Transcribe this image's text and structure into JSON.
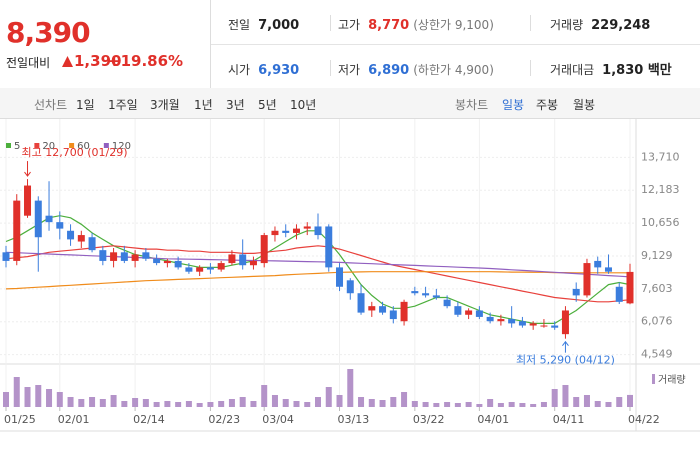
{
  "header": {
    "price": "8,390",
    "change_label": "전일대비",
    "change": "1,390",
    "change_rate": "+19.86%",
    "stats": [
      {
        "label": "전일",
        "value": "7,000"
      },
      {
        "label": "고가",
        "value": "8,770",
        "note": "(상한가 9,100)"
      },
      {
        "label": "거래량",
        "value": "229,248"
      },
      {
        "label": "시가",
        "value": "6,930"
      },
      {
        "label": "저가",
        "value": "6,890",
        "note": "(하한가 4,900)"
      },
      {
        "label": "거래대금",
        "value": "1,830 백만"
      }
    ]
  },
  "toolbar": {
    "line_chart_label": "선차트",
    "periods": [
      "1일",
      "1주일",
      "3개월",
      "1년",
      "3년",
      "5년",
      "10년"
    ],
    "candle_label": "봉차트",
    "candle_periods": [
      "일봉",
      "주봉",
      "월봉"
    ],
    "active_candle_period": 0
  },
  "chart_data": {
    "type": "candlestick",
    "up_color": "#e0302a",
    "down_color": "#3b7ddd",
    "volume_color": "#b493c9",
    "volume_label": "거래량",
    "annotations": {
      "high": "최고 12,700 (01/29)",
      "low": "최저 5,290 (04/12)"
    },
    "categories": [
      "01/25",
      null,
      null,
      null,
      null,
      "02/01",
      null,
      null,
      null,
      null,
      null,
      null,
      "02/14",
      null,
      null,
      null,
      null,
      null,
      null,
      "02/23",
      null,
      null,
      null,
      null,
      "03/04",
      null,
      null,
      null,
      null,
      null,
      null,
      "03/13",
      null,
      null,
      null,
      null,
      null,
      null,
      "03/22",
      null,
      null,
      null,
      null,
      null,
      "04/01",
      null,
      null,
      null,
      null,
      null,
      null,
      "04/11",
      null,
      null,
      null,
      null,
      null,
      null,
      "04/22"
    ],
    "open": [
      9300,
      8900,
      11000,
      11700,
      11000,
      10700,
      10300,
      9800,
      10000,
      9400,
      8900,
      9300,
      8900,
      9300,
      9000,
      8800,
      8900,
      8600,
      8400,
      8600,
      8500,
      8800,
      9200,
      8700,
      8800,
      10100,
      10300,
      10200,
      10400,
      10500,
      10500,
      8600,
      8000,
      7400,
      6600,
      6800,
      6600,
      6100,
      7500,
      7400,
      7300,
      7100,
      6800,
      6400,
      6600,
      6300,
      6100,
      6200,
      6100,
      5900,
      5900,
      5900,
      5500,
      7600,
      7300,
      8900,
      8600,
      7700,
      6930
    ],
    "high": [
      9600,
      12000,
      12700,
      11900,
      12600,
      11200,
      10600,
      10300,
      10200,
      9600,
      9500,
      9600,
      9400,
      9500,
      9200,
      9000,
      9100,
      8800,
      8700,
      8800,
      8900,
      9400,
      9900,
      9100,
      10200,
      10500,
      10600,
      10600,
      10700,
      11100,
      10600,
      8800,
      8100,
      7800,
      7000,
      7000,
      6800,
      7100,
      7700,
      7700,
      7600,
      7300,
      7000,
      6700,
      6800,
      6500,
      6400,
      6800,
      6300,
      6100,
      6200,
      6100,
      6800,
      7900,
      9000,
      9100,
      9200,
      7900,
      8770
    ],
    "low": [
      8600,
      8700,
      10900,
      8400,
      10300,
      9900,
      9600,
      9500,
      9300,
      8700,
      8600,
      8800,
      8600,
      8900,
      8700,
      8600,
      8500,
      8300,
      8200,
      8300,
      8400,
      8700,
      8500,
      8500,
      8600,
      9800,
      10000,
      9900,
      10100,
      9900,
      8400,
      7500,
      7100,
      6400,
      6300,
      6400,
      6000,
      5900,
      7300,
      7200,
      7100,
      6700,
      6300,
      6200,
      6200,
      6000,
      5900,
      5800,
      5800,
      5700,
      5800,
      5700,
      5290,
      7000,
      7200,
      8300,
      8300,
      6900,
      6890
    ],
    "close": [
      8900,
      11700,
      12400,
      10000,
      10700,
      10400,
      9900,
      10100,
      9400,
      8900,
      9300,
      8900,
      9200,
      9000,
      8800,
      8900,
      8600,
      8400,
      8600,
      8500,
      8800,
      9200,
      8700,
      8900,
      10100,
      10300,
      10200,
      10400,
      10500,
      10100,
      8600,
      7700,
      7400,
      6500,
      6800,
      6500,
      6200,
      7000,
      7400,
      7300,
      7200,
      6800,
      6400,
      6600,
      6300,
      6100,
      6200,
      6000,
      5900,
      6000,
      5900,
      5800,
      6600,
      7300,
      8800,
      8600,
      8400,
      7000,
      8390
    ],
    "volume": [
      285000,
      570000,
      380000,
      418000,
      342000,
      285000,
      190000,
      152000,
      190000,
      152000,
      228000,
      114000,
      171000,
      152000,
      95000,
      114000,
      95000,
      114000,
      76000,
      95000,
      114000,
      152000,
      190000,
      114000,
      418000,
      228000,
      152000,
      114000,
      95000,
      190000,
      380000,
      228000,
      722000,
      190000,
      152000,
      133000,
      190000,
      285000,
      114000,
      95000,
      76000,
      95000,
      76000,
      95000,
      57000,
      152000,
      76000,
      95000,
      76000,
      57000,
      95000,
      342000,
      418000,
      190000,
      228000,
      114000,
      95000,
      190000,
      229248
    ],
    "series": [
      {
        "name": "5",
        "color": "#4caf3c",
        "values": [
          9800,
          10000,
          10300,
          10600,
          10900,
          11000,
          10900,
          10600,
          10200,
          9900,
          9600,
          9400,
          9200,
          9100,
          9000,
          8900,
          8800,
          8700,
          8600,
          8600,
          8600,
          8700,
          8800,
          8900,
          9200,
          9500,
          9800,
          10100,
          10300,
          10300,
          9800,
          9200,
          8500,
          7800,
          7300,
          6900,
          6700,
          6700,
          6800,
          7000,
          7200,
          7200,
          7000,
          6800,
          6600,
          6400,
          6300,
          6200,
          6100,
          6000,
          6000,
          6000,
          6300,
          6600,
          7000,
          7400,
          7800,
          7900,
          7800
        ]
      },
      {
        "name": "20",
        "color": "#e8413c",
        "values": [
          9000,
          9050,
          9100,
          9200,
          9300,
          9350,
          9400,
          9450,
          9500,
          9550,
          9600,
          9550,
          9500,
          9450,
          9450,
          9400,
          9400,
          9350,
          9350,
          9300,
          9300,
          9300,
          9250,
          9250,
          9300,
          9350,
          9400,
          9500,
          9550,
          9600,
          9550,
          9450,
          9300,
          9150,
          9000,
          8850,
          8700,
          8600,
          8500,
          8400,
          8300,
          8200,
          8100,
          8000,
          7900,
          7800,
          7700,
          7600,
          7500,
          7400,
          7300,
          7200,
          7150,
          7100,
          7050,
          7000,
          7000,
          7050,
          7100
        ]
      },
      {
        "name": "60",
        "color": "#f08c1c",
        "values": [
          7600,
          7620,
          7650,
          7680,
          7710,
          7740,
          7770,
          7800,
          7830,
          7860,
          7890,
          7920,
          7950,
          7980,
          8000,
          8020,
          8040,
          8060,
          8080,
          8100,
          8120,
          8140,
          8160,
          8180,
          8200,
          8220,
          8250,
          8280,
          8300,
          8320,
          8350,
          8370,
          8380,
          8390,
          8400,
          8400,
          8400,
          8400,
          8400,
          8400,
          8400,
          8400,
          8400,
          8400,
          8400,
          8400,
          8390,
          8380,
          8380,
          8370,
          8370,
          8360,
          8360,
          8350,
          8350,
          8350,
          8350,
          8350,
          8350
        ]
      },
      {
        "name": "120",
        "color": "#9160c0",
        "values": [
          9300,
          9280,
          9260,
          9240,
          9220,
          9200,
          9180,
          9160,
          9140,
          9120,
          9100,
          9080,
          9060,
          9040,
          9020,
          9000,
          8990,
          8980,
          8970,
          8960,
          8950,
          8940,
          8930,
          8920,
          8910,
          8900,
          8890,
          8880,
          8870,
          8860,
          8850,
          8830,
          8810,
          8790,
          8770,
          8750,
          8730,
          8710,
          8690,
          8670,
          8650,
          8630,
          8610,
          8590,
          8570,
          8550,
          8520,
          8490,
          8460,
          8430,
          8400,
          8370,
          8340,
          8310,
          8280,
          8250,
          8220,
          8190,
          8160
        ]
      }
    ],
    "ylim": [
      4300,
      14050
    ],
    "yticks": [
      {
        "value": 13710,
        "label": "13,710"
      },
      {
        "value": 12183,
        "label": "12,183"
      },
      {
        "value": 10656,
        "label": "10,656"
      },
      {
        "value": 9129,
        "label": "9,129"
      },
      {
        "value": 7603,
        "label": "7,603"
      },
      {
        "value": 6076,
        "label": "6,076"
      },
      {
        "value": 4549,
        "label": "4,549"
      }
    ],
    "grid": true
  }
}
